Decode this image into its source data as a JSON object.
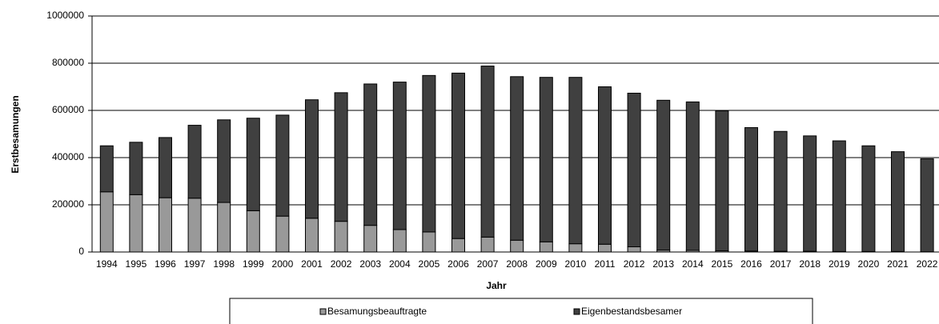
{
  "chart_data": {
    "type": "stacked_bar",
    "x_label": "Jahr",
    "y_label": "Erstbesamungen",
    "categories": [
      "1994",
      "1995",
      "1996",
      "1997",
      "1998",
      "1999",
      "2000",
      "2001",
      "2002",
      "2003",
      "2004",
      "2005",
      "2006",
      "2007",
      "2008",
      "2009",
      "2010",
      "2011",
      "2012",
      "2013",
      "2014",
      "2015",
      "2016",
      "2017",
      "2018",
      "2019",
      "2020",
      "2021",
      "2022"
    ],
    "series": [
      {
        "name": "Besamungsbeauftragte",
        "color": "#999999",
        "values": [
          255000,
          243000,
          230000,
          228000,
          210000,
          175000,
          152000,
          143000,
          130000,
          113000,
          95000,
          85000,
          57000,
          63000,
          50000,
          43000,
          35000,
          33000,
          22000,
          8000,
          7000,
          5000,
          4000,
          3000,
          3000,
          2000,
          2000,
          2000,
          1000
        ]
      },
      {
        "name": "Eigenbestandsbesamer",
        "color": "#404040",
        "values": [
          195000,
          222000,
          255000,
          309000,
          350000,
          392000,
          428000,
          502000,
          545000,
          599000,
          625000,
          663000,
          701000,
          725000,
          693000,
          697000,
          705000,
          667000,
          651000,
          635000,
          629000,
          593000,
          523000,
          508000,
          489000,
          469000,
          448000,
          423000,
          394000
        ]
      }
    ],
    "ylim": [
      0,
      1000000
    ],
    "yticks": [
      0,
      200000,
      400000,
      600000,
      800000,
      1000000
    ],
    "grid": true,
    "legend": "bottom"
  }
}
